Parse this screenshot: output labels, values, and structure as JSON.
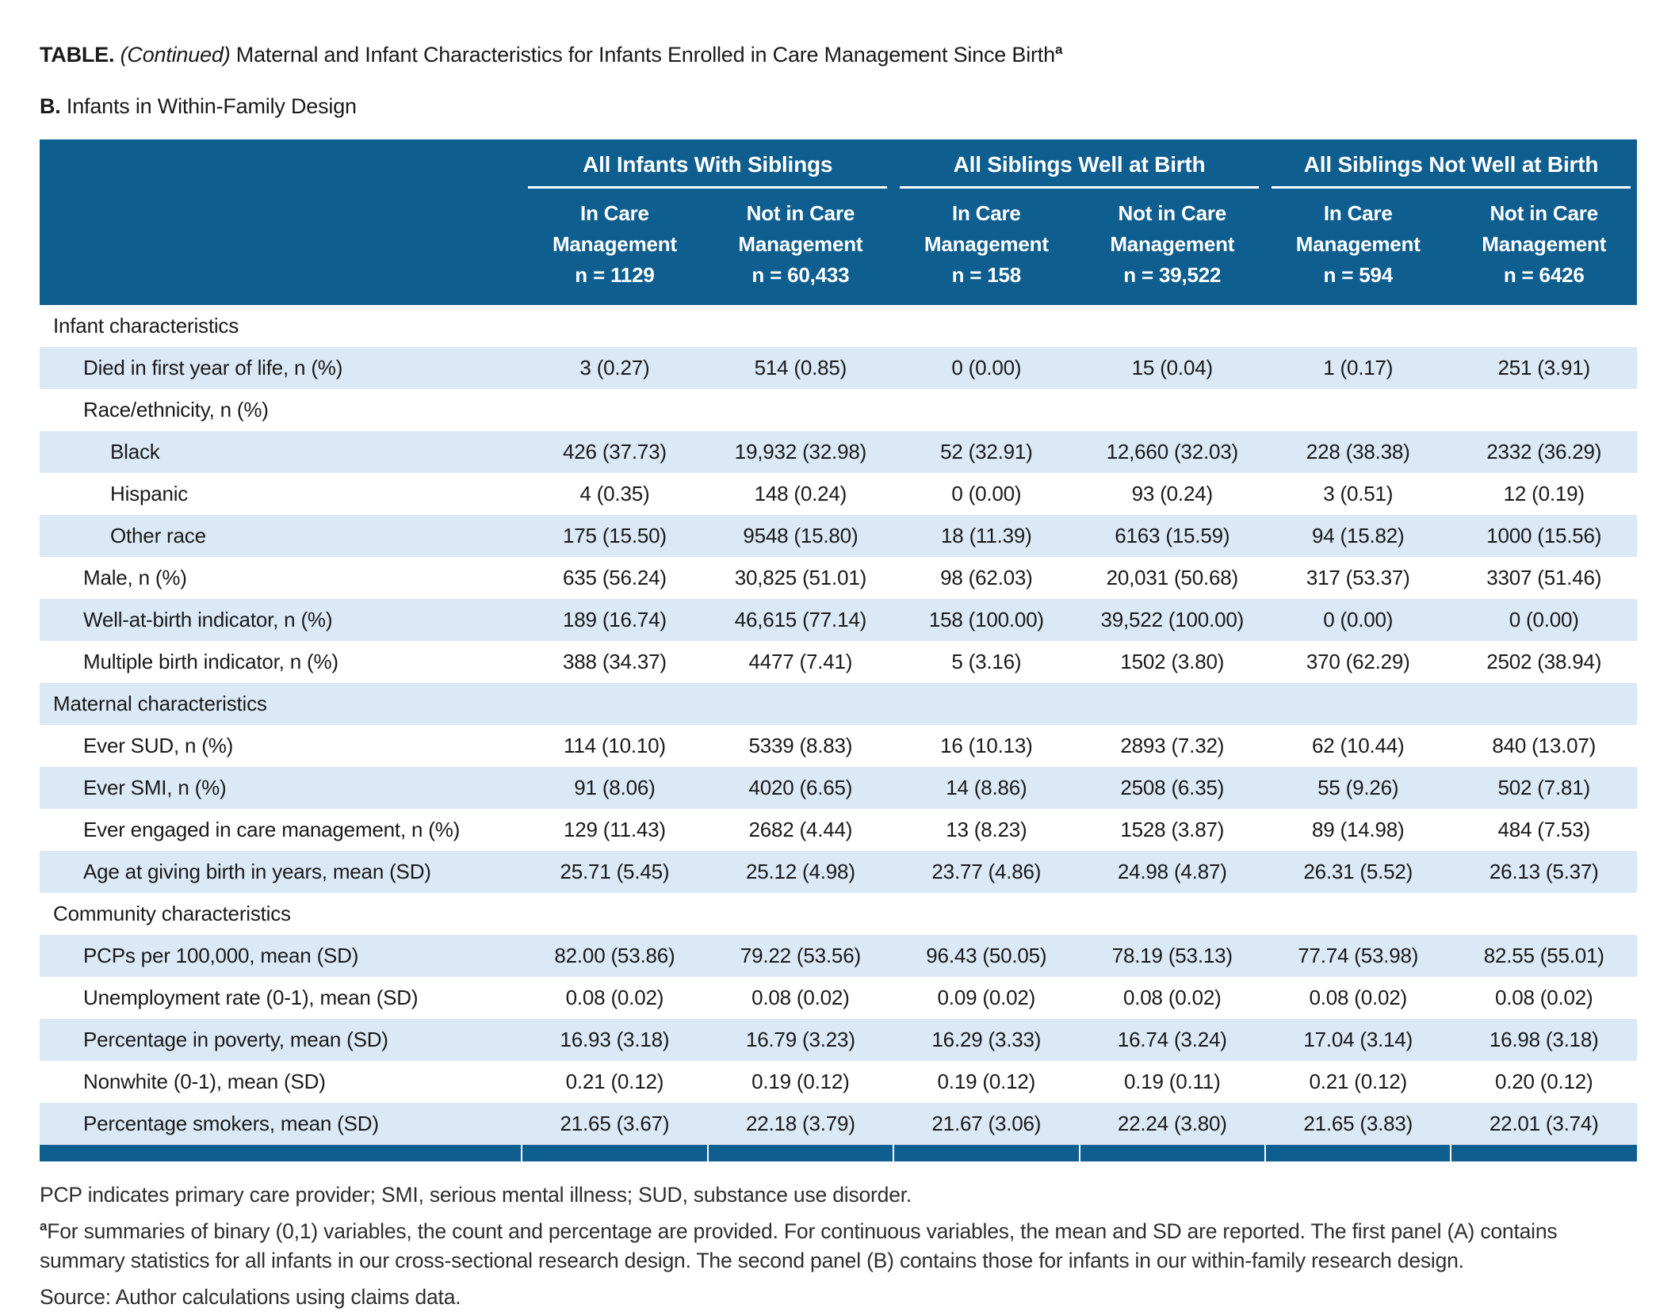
{
  "page": {
    "title_prefix": "TABLE.",
    "title_continued": "(Continued)",
    "title_rest": " Maternal and Infant Characteristics for Infants Enrolled in Care Management Since Birth",
    "title_superscript": "a",
    "panel_label": "B.",
    "panel_title": " Infants in Within-Family Design"
  },
  "colors": {
    "header_blue": "#0F5E90",
    "stripe_blue": "#DBE8F5",
    "text": "#1A1A1A"
  },
  "table": {
    "column_groups": [
      {
        "label": "All Infants With Siblings",
        "columns": [
          {
            "line1": "In Care",
            "line2": "Management",
            "n": "n = 1129"
          },
          {
            "line1": "Not in Care",
            "line2": "Management",
            "n": "n = 60,433"
          }
        ]
      },
      {
        "label": "All Siblings Well at Birth",
        "columns": [
          {
            "line1": "In Care",
            "line2": "Management",
            "n": "n = 158"
          },
          {
            "line1": "Not in Care",
            "line2": "Management",
            "n": "n = 39,522"
          }
        ]
      },
      {
        "label": "All Siblings Not Well at Birth",
        "columns": [
          {
            "line1": "In Care",
            "line2": "Management",
            "n": "n = 594"
          },
          {
            "line1": "Not in Care",
            "line2": "Management",
            "n": "n = 6426"
          }
        ]
      }
    ],
    "rows": [
      {
        "type": "section",
        "indent": 0,
        "label": "Infant characteristics",
        "values": [
          "",
          "",
          "",
          "",
          "",
          ""
        ]
      },
      {
        "type": "data",
        "indent": 1,
        "label": "Died in first year of life, n (%)",
        "values": [
          "3 (0.27)",
          "514 (0.85)",
          "0 (0.00)",
          "15 (0.04)",
          "1 (0.17)",
          "251 (3.91)"
        ]
      },
      {
        "type": "subsection",
        "indent": 1,
        "label": "Race/ethnicity, n (%)",
        "values": [
          "",
          "",
          "",
          "",
          "",
          ""
        ]
      },
      {
        "type": "data",
        "indent": 2,
        "label": "Black",
        "values": [
          "426 (37.73)",
          "19,932 (32.98)",
          "52 (32.91)",
          "12,660 (32.03)",
          "228 (38.38)",
          "2332 (36.29)"
        ]
      },
      {
        "type": "data",
        "indent": 2,
        "label": "Hispanic",
        "values": [
          "4 (0.35)",
          "148 (0.24)",
          "0 (0.00)",
          "93 (0.24)",
          "3 (0.51)",
          "12 (0.19)"
        ]
      },
      {
        "type": "data",
        "indent": 2,
        "label": "Other race",
        "values": [
          "175 (15.50)",
          "9548 (15.80)",
          "18 (11.39)",
          "6163 (15.59)",
          "94 (15.82)",
          "1000 (15.56)"
        ]
      },
      {
        "type": "data",
        "indent": 1,
        "label": "Male, n (%)",
        "values": [
          "635 (56.24)",
          "30,825 (51.01)",
          "98 (62.03)",
          "20,031 (50.68)",
          "317 (53.37)",
          "3307 (51.46)"
        ]
      },
      {
        "type": "data",
        "indent": 1,
        "label": "Well-at-birth indicator, n (%)",
        "values": [
          "189 (16.74)",
          "46,615 (77.14)",
          "158 (100.00)",
          "39,522 (100.00)",
          "0 (0.00)",
          "0 (0.00)"
        ]
      },
      {
        "type": "data",
        "indent": 1,
        "label": "Multiple birth indicator, n (%)",
        "values": [
          "388 (34.37)",
          "4477 (7.41)",
          "5 (3.16)",
          "1502 (3.80)",
          "370 (62.29)",
          "2502 (38.94)"
        ]
      },
      {
        "type": "section",
        "indent": 0,
        "label": "Maternal characteristics",
        "values": [
          "",
          "",
          "",
          "",
          "",
          ""
        ]
      },
      {
        "type": "data",
        "indent": 1,
        "label": "Ever SUD, n (%)",
        "values": [
          "114 (10.10)",
          "5339 (8.83)",
          "16 (10.13)",
          "2893 (7.32)",
          "62 (10.44)",
          "840 (13.07)"
        ]
      },
      {
        "type": "data",
        "indent": 1,
        "label": "Ever SMI, n (%)",
        "values": [
          "91 (8.06)",
          "4020 (6.65)",
          "14 (8.86)",
          "2508 (6.35)",
          "55 (9.26)",
          "502 (7.81)"
        ]
      },
      {
        "type": "data",
        "indent": 1,
        "label": "Ever engaged in care management, n (%)",
        "values": [
          "129 (11.43)",
          "2682 (4.44)",
          "13 (8.23)",
          "1528 (3.87)",
          "89 (14.98)",
          "484 (7.53)"
        ]
      },
      {
        "type": "data",
        "indent": 1,
        "label": "Age at giving birth in years, mean (SD)",
        "values": [
          "25.71 (5.45)",
          "25.12 (4.98)",
          "23.77 (4.86)",
          "24.98 (4.87)",
          "26.31 (5.52)",
          "26.13 (5.37)"
        ]
      },
      {
        "type": "section",
        "indent": 0,
        "label": "Community characteristics",
        "values": [
          "",
          "",
          "",
          "",
          "",
          ""
        ]
      },
      {
        "type": "data",
        "indent": 1,
        "label": "PCPs per 100,000, mean (SD)",
        "values": [
          "82.00 (53.86)",
          "79.22 (53.56)",
          "96.43 (50.05)",
          "78.19 (53.13)",
          "77.74 (53.98)",
          "82.55 (55.01)"
        ]
      },
      {
        "type": "data",
        "indent": 1,
        "label": "Unemployment rate (0-1), mean (SD)",
        "values": [
          "0.08 (0.02)",
          "0.08 (0.02)",
          "0.09 (0.02)",
          "0.08 (0.02)",
          "0.08 (0.02)",
          "0.08 (0.02)"
        ]
      },
      {
        "type": "data",
        "indent": 1,
        "label": "Percentage in poverty, mean (SD)",
        "values": [
          "16.93 (3.18)",
          "16.79 (3.23)",
          "16.29 (3.33)",
          "16.74 (3.24)",
          "17.04 (3.14)",
          "16.98 (3.18)"
        ]
      },
      {
        "type": "data",
        "indent": 1,
        "label": "Nonwhite (0-1), mean (SD)",
        "values": [
          "0.21 (0.12)",
          "0.19 (0.12)",
          "0.19 (0.12)",
          "0.19 (0.11)",
          "0.21 (0.12)",
          "0.20 (0.12)"
        ]
      },
      {
        "type": "data",
        "indent": 1,
        "label": "Percentage smokers, mean (SD)",
        "values": [
          "21.65 (3.67)",
          "22.18 (3.79)",
          "21.67 (3.06)",
          "22.24 (3.80)",
          "21.65 (3.83)",
          "22.01 (3.74)"
        ]
      }
    ]
  },
  "footnotes": {
    "abbreviations": "PCP indicates primary care provider; SMI, serious mental illness; SUD, substance use disorder.",
    "note_a_marker": "a",
    "note_a_text": "For summaries of binary (0,1) variables, the count and percentage are provided. For continuous variables, the mean and SD are reported. The first panel (A) contains summary statistics for all infants in our cross-sectional research design. The second panel (B) contains those for infants in our within-family research design.",
    "source": "Source: Author calculations using claims data."
  }
}
